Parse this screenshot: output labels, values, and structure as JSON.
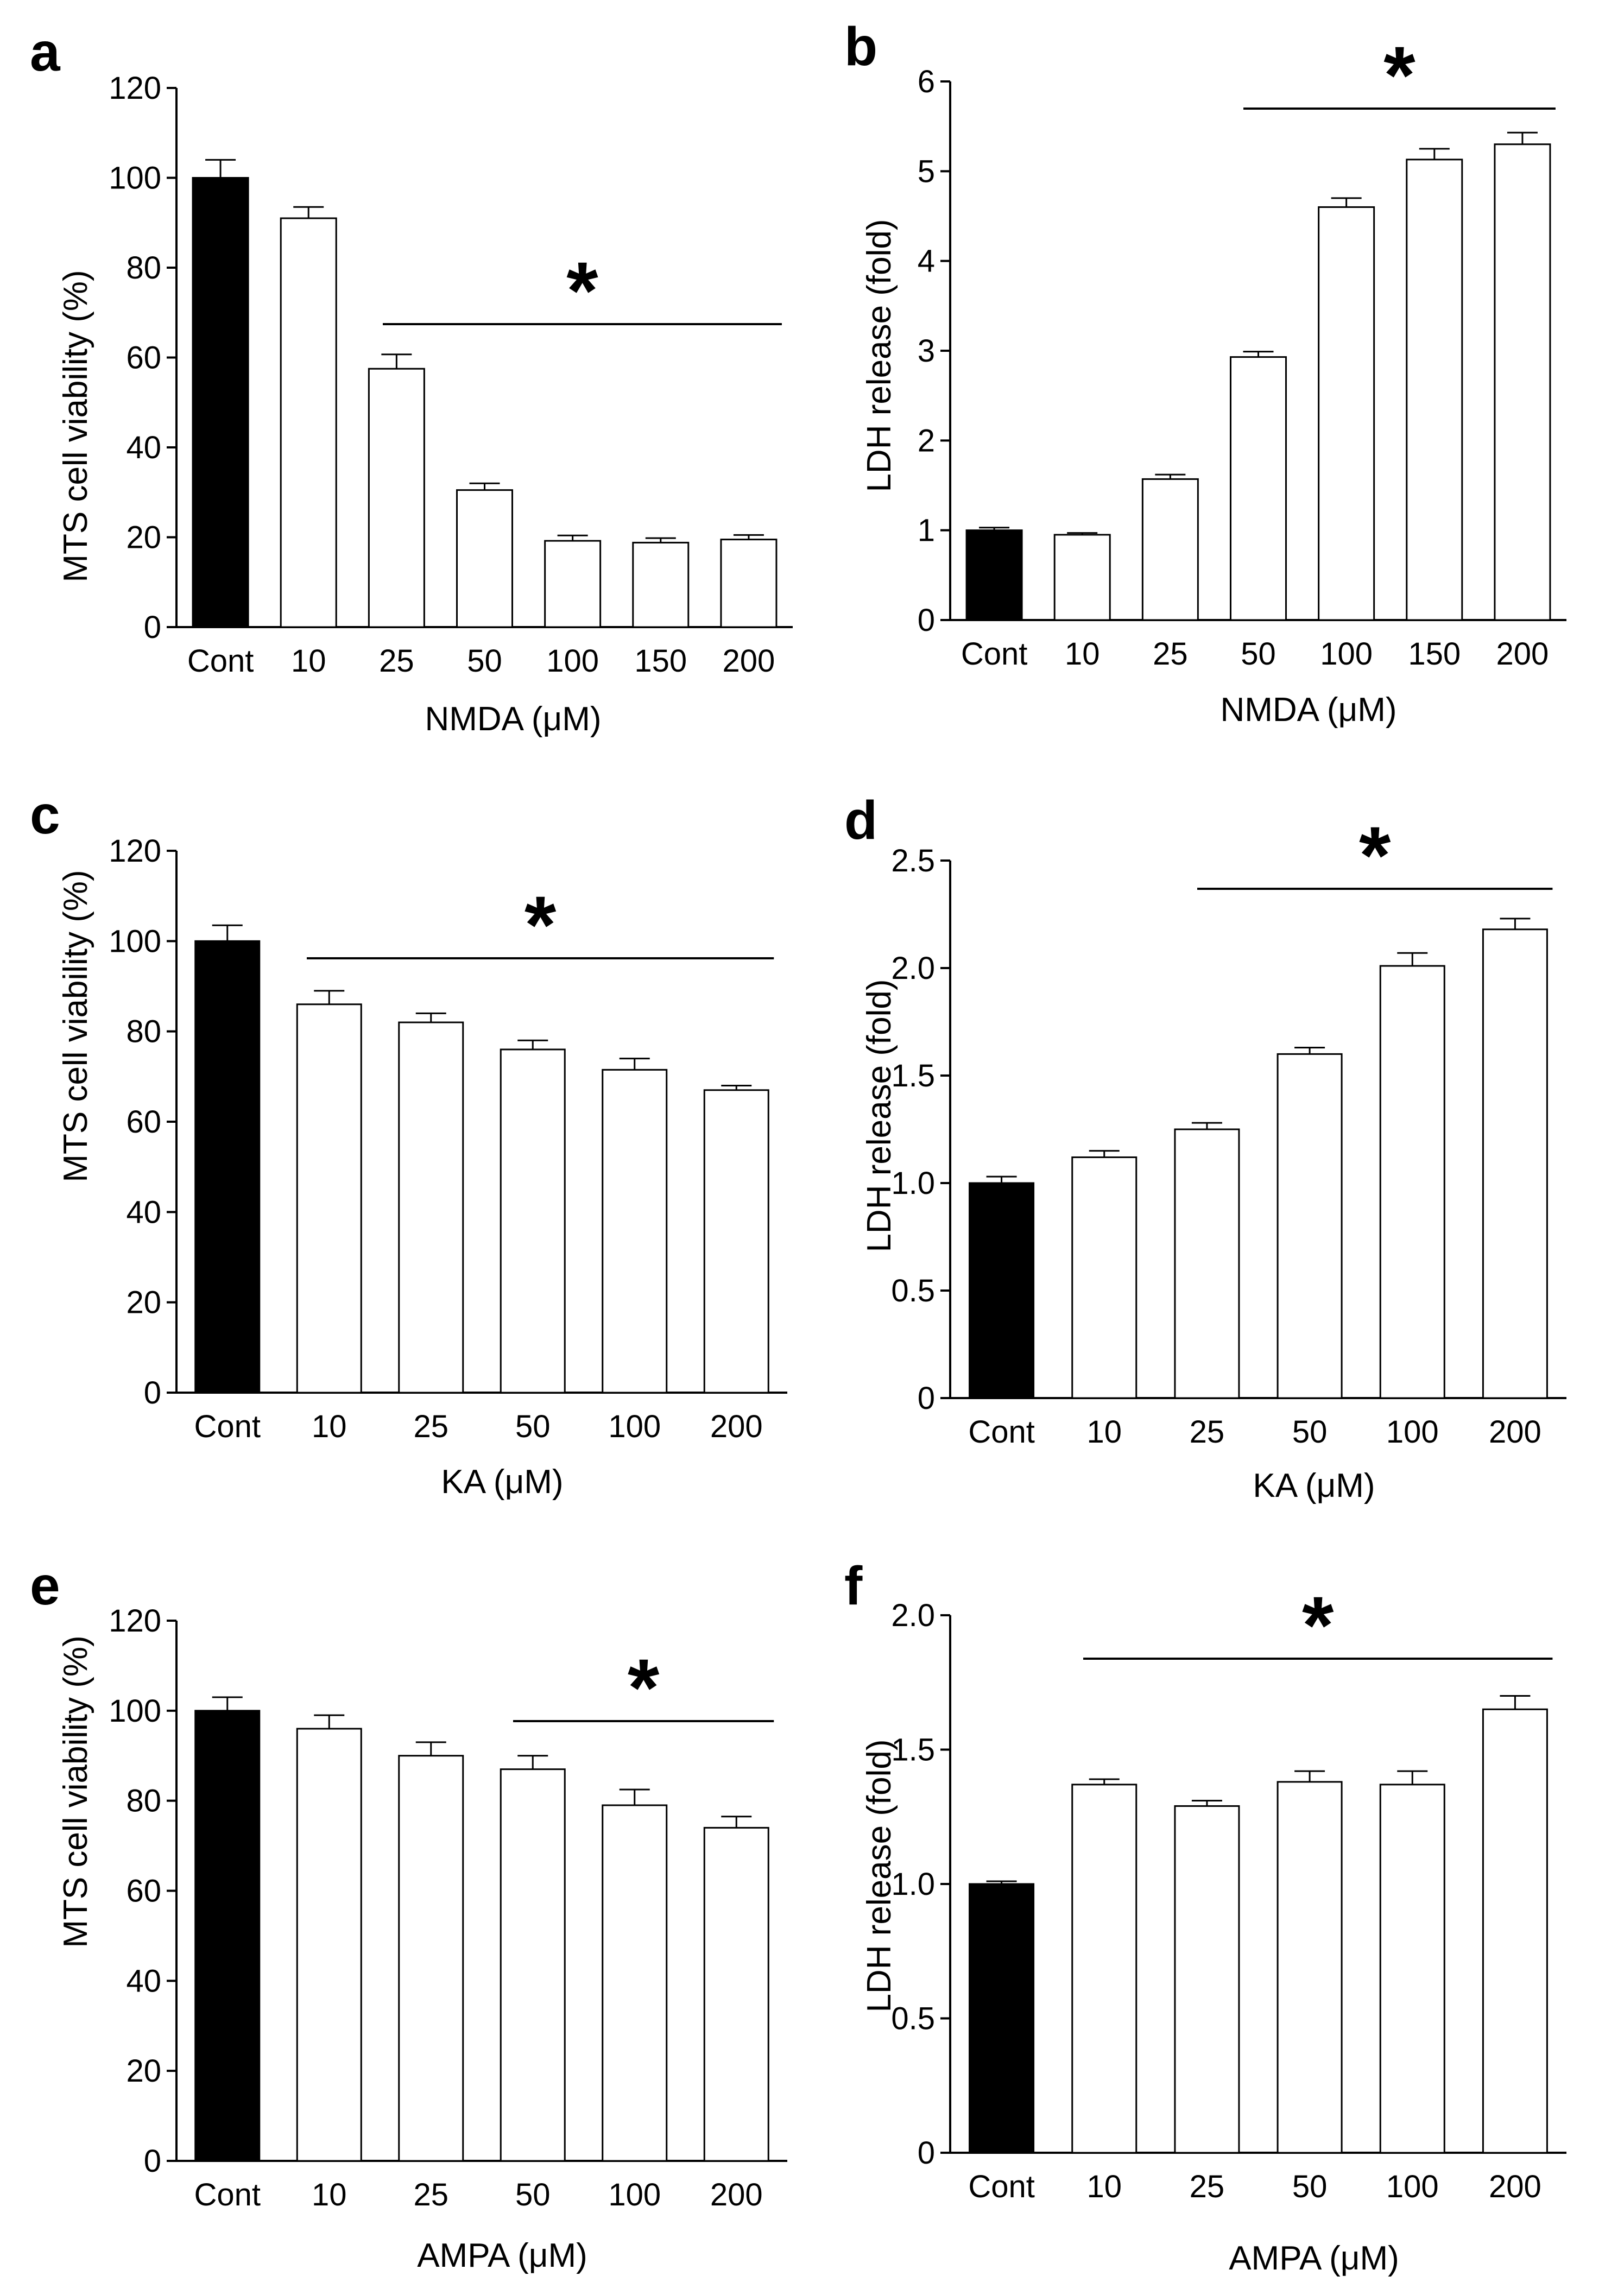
{
  "colors": {
    "control_fill": "#000000",
    "treated_fill": "#ffffff",
    "stroke": "#000000",
    "background": "#ffffff"
  },
  "chart_data": [
    {
      "panel": "a",
      "type": "bar",
      "categories": [
        "Cont",
        "10",
        "25",
        "50",
        "100",
        "150",
        "200"
      ],
      "values": [
        100,
        91,
        57.5,
        30.5,
        19.2,
        18.8,
        19.5
      ],
      "errors": [
        4,
        2.5,
        3.2,
        1.5,
        1.2,
        1.0,
        1.0
      ],
      "xlabel": "NMDA (μM)",
      "ylabel": "MTS cell viability (%)",
      "ylim": [
        0,
        120
      ],
      "yticks": [
        "0",
        "20",
        "40",
        "60",
        "80",
        "100",
        "120"
      ],
      "significance": {
        "label": "*",
        "from": "25",
        "to": "200"
      }
    },
    {
      "panel": "b",
      "type": "bar",
      "categories": [
        "Cont",
        "10",
        "25",
        "50",
        "100",
        "150",
        "200"
      ],
      "values": [
        1.0,
        0.95,
        1.57,
        2.93,
        4.6,
        5.13,
        5.3
      ],
      "errors": [
        0.03,
        0.02,
        0.05,
        0.06,
        0.1,
        0.12,
        0.13
      ],
      "xlabel": "NMDA (μM)",
      "ylabel": "LDH release (fold)",
      "ylim": [
        0,
        6
      ],
      "yticks": [
        "0",
        "1",
        "2",
        "3",
        "4",
        "5",
        "6"
      ],
      "significance": {
        "label": "*",
        "from": "50",
        "to": "200"
      }
    },
    {
      "panel": "c",
      "type": "bar",
      "categories": [
        "Cont",
        "10",
        "25",
        "50",
        "100",
        "200"
      ],
      "values": [
        100,
        86,
        82,
        76,
        71.5,
        67
      ],
      "errors": [
        3.5,
        3.0,
        2.0,
        2.0,
        2.5,
        1.0
      ],
      "xlabel": "KA (μM)",
      "ylabel": "MTS cell viability (%)",
      "ylim": [
        0,
        120
      ],
      "yticks": [
        "0",
        "20",
        "40",
        "60",
        "80",
        "100",
        "120"
      ],
      "significance": {
        "label": "*",
        "from": "10",
        "to": "200"
      }
    },
    {
      "panel": "d",
      "type": "bar",
      "categories": [
        "Cont",
        "10",
        "25",
        "50",
        "100",
        "200"
      ],
      "values": [
        1.0,
        1.12,
        1.25,
        1.6,
        2.01,
        2.18
      ],
      "errors": [
        0.03,
        0.03,
        0.03,
        0.03,
        0.06,
        0.05
      ],
      "xlabel": "KA (μM)",
      "ylabel": "LDH release (fold)",
      "ylim": [
        0,
        2.5
      ],
      "yticks": [
        "0",
        "0.5",
        "1.0",
        "1.5",
        "2.0",
        "2.5"
      ],
      "significance": {
        "label": "*",
        "from": "25",
        "to": "200"
      }
    },
    {
      "panel": "e",
      "type": "bar",
      "categories": [
        "Cont",
        "10",
        "25",
        "50",
        "100",
        "200"
      ],
      "values": [
        100,
        96,
        90,
        87,
        79,
        74
      ],
      "errors": [
        3.0,
        3.0,
        3.0,
        3.0,
        3.5,
        2.5
      ],
      "xlabel": "AMPA (μM)",
      "ylabel": "MTS cell viability (%)",
      "ylim": [
        0,
        120
      ],
      "yticks": [
        "0",
        "20",
        "40",
        "60",
        "80",
        "100",
        "120"
      ],
      "significance": {
        "label": "*",
        "from": "50",
        "to": "200"
      }
    },
    {
      "panel": "f",
      "type": "bar",
      "categories": [
        "Cont",
        "10",
        "25",
        "50",
        "100",
        "200"
      ],
      "values": [
        1.0,
        1.37,
        1.29,
        1.38,
        1.37,
        1.65
      ],
      "errors": [
        0.01,
        0.02,
        0.02,
        0.04,
        0.05,
        0.05
      ],
      "xlabel": "AMPA (μM)",
      "ylabel": "LDH release (fold)",
      "ylim": [
        0,
        2.0
      ],
      "yticks": [
        "0",
        "0.5",
        "1.0",
        "1.5",
        "2.0"
      ],
      "significance": {
        "label": "*",
        "from": "10",
        "to": "200"
      }
    }
  ]
}
